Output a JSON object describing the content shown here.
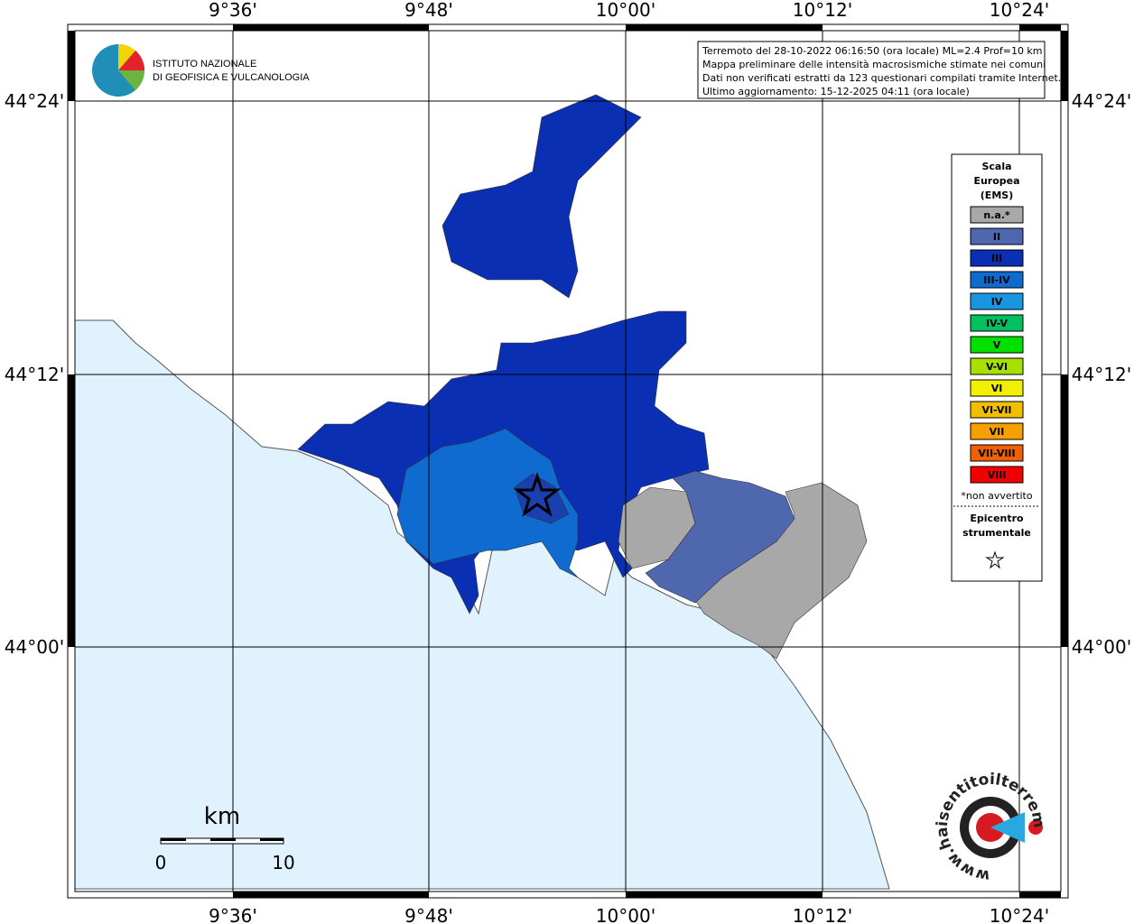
{
  "map": {
    "lon_labels": [
      "9°36'",
      "9°48'",
      "10°00'",
      "10°12'",
      "10°24'"
    ],
    "lat_labels": [
      "44°24'",
      "44°12'",
      "44°00'"
    ]
  },
  "logo": {
    "line1": "ISTITUTO NAZIONALE",
    "line2": "DI GEOFISICA E VULCANOLOGIA"
  },
  "info": [
    "Terremoto del 28-10-2022 06:16:50 (ora locale) ML=2.4 Prof=10 km",
    "Mappa preliminare delle intensità macrosismiche stimate nei comuni",
    "Dati non verificati estratti da 123 questionari compilati tramite Internet.",
    "Ultimo aggiornamento: 15-12-2025 04:11 (ora locale)"
  ],
  "legend": {
    "title": [
      "Scala",
      "Europea",
      "(EMS)"
    ],
    "items": [
      {
        "label": "n.a.*",
        "color": "#a8a8a8"
      },
      {
        "label": "II",
        "color": "#4f67ae"
      },
      {
        "label": "III",
        "color": "#0a2fb3"
      },
      {
        "label": "III-IV",
        "color": "#0f6bcf"
      },
      {
        "label": "IV",
        "color": "#1a96e0"
      },
      {
        "label": "IV-V",
        "color": "#00c060"
      },
      {
        "label": "V",
        "color": "#00e000"
      },
      {
        "label": "V-VI",
        "color": "#a8e000"
      },
      {
        "label": "VI",
        "color": "#f2f000"
      },
      {
        "label": "VI-VII",
        "color": "#f0c000"
      },
      {
        "label": "VII",
        "color": "#f5a000"
      },
      {
        "label": "VII-VIII",
        "color": "#f06000"
      },
      {
        "label": "VIII",
        "color": "#f00000"
      }
    ],
    "note": "*non avvertito",
    "epicenter": [
      "Epicentro",
      "strumentale"
    ]
  },
  "scale_bar": {
    "unit": "km",
    "start": 0,
    "end": 10
  },
  "site": "www.haisentitoilterremoto.it"
}
